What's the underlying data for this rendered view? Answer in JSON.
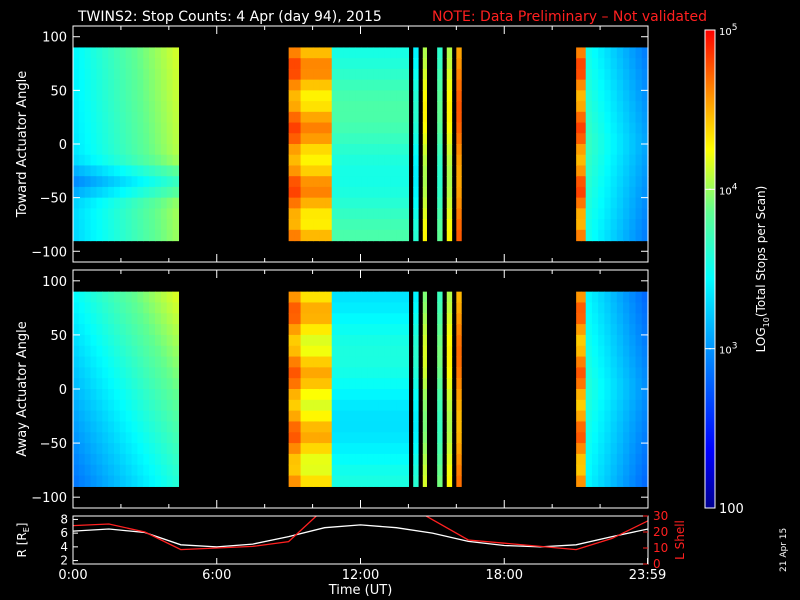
{
  "header": {
    "title": "TWINS2: Stop Counts:  4 Apr (day  94), 2015",
    "note": "NOTE: Data Preliminary – Not validated"
  },
  "colors": {
    "background": "#000000",
    "note": "#ff2020",
    "r_line": "#ffffff",
    "lshell_line": "#ff2020"
  },
  "side_stamp": "21 Apr 15",
  "chart_data": [
    {
      "type": "heatmap",
      "name": "toward",
      "ylabel": "Toward Actuator Angle",
      "ylim": [
        -110,
        110
      ],
      "yticks": [
        100,
        50,
        0,
        -50,
        -100
      ],
      "xlim": [
        0,
        24
      ],
      "angle_range": [
        -90,
        90
      ],
      "blocks": [
        {
          "t0": 0.0,
          "t1": 4.4,
          "profile": "pos_east",
          "level": 0.42
        },
        {
          "t0": 9.0,
          "t1": 9.5,
          "profile": "band",
          "level": 0.88
        },
        {
          "t0": 9.5,
          "t1": 10.8,
          "profile": "band",
          "level": 0.82
        },
        {
          "t0": 10.8,
          "t1": 14.0,
          "profile": "flat",
          "level": 0.55
        },
        {
          "t0": 14.2,
          "t1": 14.4,
          "profile": "flat",
          "level": 0.5
        },
        {
          "t0": 14.6,
          "t1": 14.75,
          "profile": "flat",
          "level": 0.72
        },
        {
          "t0": 15.2,
          "t1": 15.4,
          "profile": "flat",
          "level": 0.58
        },
        {
          "t0": 15.6,
          "t1": 15.8,
          "profile": "flat",
          "level": 0.72
        },
        {
          "t0": 16.0,
          "t1": 16.2,
          "profile": "flat",
          "level": 0.88
        },
        {
          "t0": 21.0,
          "t1": 21.4,
          "profile": "band",
          "level": 0.88
        },
        {
          "t0": 21.4,
          "t1": 24.0,
          "profile": "fade_west",
          "level": 0.35
        }
      ]
    },
    {
      "type": "heatmap",
      "name": "away",
      "ylabel": "Away Actuator Angle",
      "ylim": [
        -110,
        110
      ],
      "yticks": [
        100,
        50,
        0,
        -50,
        -100
      ],
      "xlim": [
        0,
        24
      ],
      "angle_range": [
        -90,
        90
      ],
      "blocks": [
        {
          "t0": 0.0,
          "t1": 4.4,
          "profile": "neg_east",
          "level": 0.4
        },
        {
          "t0": 9.0,
          "t1": 9.5,
          "profile": "band",
          "level": 0.86
        },
        {
          "t0": 9.5,
          "t1": 10.8,
          "profile": "band",
          "level": 0.78
        },
        {
          "t0": 10.8,
          "t1": 14.0,
          "profile": "flat",
          "level": 0.48
        },
        {
          "t0": 14.2,
          "t1": 14.4,
          "profile": "flat",
          "level": 0.5
        },
        {
          "t0": 14.6,
          "t1": 14.75,
          "profile": "flat",
          "level": 0.68
        },
        {
          "t0": 15.2,
          "t1": 15.4,
          "profile": "flat",
          "level": 0.6
        },
        {
          "t0": 15.6,
          "t1": 15.8,
          "profile": "flat",
          "level": 0.72
        },
        {
          "t0": 16.0,
          "t1": 16.2,
          "profile": "flat",
          "level": 0.86
        },
        {
          "t0": 21.0,
          "t1": 21.4,
          "profile": "band",
          "level": 0.86
        },
        {
          "t0": 21.4,
          "t1": 24.0,
          "profile": "fade_west",
          "level": 0.32
        }
      ]
    },
    {
      "type": "line",
      "name": "orbit",
      "ylabel_left": "R [R",
      "ylabel_left_sub": "E",
      "ylabel_left_close": "]",
      "ylabel_right": "L Shell",
      "ylim_left": [
        1.5,
        8.5
      ],
      "ylim_right": [
        0,
        30
      ],
      "yticks_left": [
        8,
        6,
        4,
        2
      ],
      "yticks_right": [
        30,
        20,
        10,
        0
      ],
      "xlim": [
        0,
        24
      ],
      "xticks": [
        {
          "t": 0,
          "label": "0:00"
        },
        {
          "t": 6,
          "label": "6:00"
        },
        {
          "t": 12,
          "label": "12:00"
        },
        {
          "t": 18,
          "label": "18:00"
        },
        {
          "t": 23.98,
          "label": "23:59"
        }
      ],
      "xlabel": "Time (UT)",
      "series": [
        {
          "axis": "left",
          "color": "#ffffff",
          "x": [
            0,
            1.5,
            3,
            4.5,
            6,
            7.5,
            9,
            10.5,
            12,
            13.5,
            15,
            16.5,
            18,
            19.5,
            21,
            22.5,
            24
          ],
          "y": [
            6.3,
            6.6,
            6.1,
            4.3,
            4.0,
            4.4,
            5.5,
            6.8,
            7.2,
            6.8,
            6.0,
            4.8,
            4.2,
            4.0,
            4.3,
            5.5,
            6.6
          ]
        },
        {
          "axis": "right",
          "color": "#ff2020",
          "x": [
            0,
            1.5,
            3,
            4.5,
            6,
            7.5,
            9,
            10.3,
            14.5,
            16.5,
            18,
            19.5,
            21,
            22.5,
            24
          ],
          "y": [
            24,
            25,
            20,
            9,
            10,
            11,
            14,
            32,
            32,
            15,
            13,
            11,
            9,
            16,
            27
          ]
        }
      ]
    }
  ],
  "colorbar": {
    "label_prefix": "LOG",
    "label_sub": "10",
    "label_suffix": "(Total Stops per Scan)",
    "ticks": [
      {
        "base": "10",
        "exp": "5",
        "frac": 1.0
      },
      {
        "base": "10",
        "exp": "4",
        "frac": 0.6667
      },
      {
        "base": "10",
        "exp": "3",
        "frac": 0.3333
      },
      {
        "base": "100",
        "exp": "",
        "frac": 0.0
      }
    ]
  }
}
